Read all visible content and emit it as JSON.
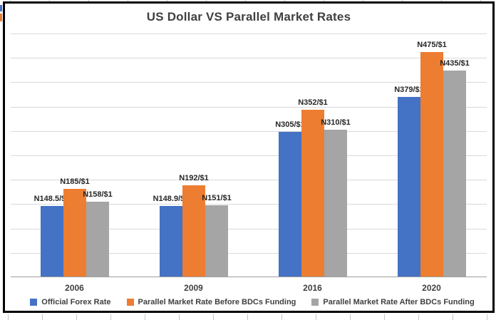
{
  "chart": {
    "title": "US Dollar VS Parallel Market Rates",
    "title_color": "#404040",
    "border_color": "#000000",
    "background": "#ffffff",
    "gridline_color": "#d9d9d9",
    "axis_line_color": "#9e9e9e",
    "data_label_color": "#262626",
    "category_label_color": "#404040"
  },
  "chart_data": {
    "type": "bar",
    "title": "US Dollar VS Parallel Market Rates",
    "categories": [
      "2006",
      "2009",
      "2016",
      "2020"
    ],
    "series": [
      {
        "name": "Official Forex Rate",
        "color": "#4472C4",
        "values": [
          148.5,
          148.9,
          305,
          379
        ],
        "data_labels": [
          "N148.5/$1",
          "N148.9/$1",
          "N305/$1",
          "N379/$1"
        ]
      },
      {
        "name": "Parallel Market Rate Before BDCs Funding",
        "color": "#ED7D31",
        "values": [
          185,
          192,
          352,
          475
        ],
        "data_labels": [
          "N185/$1",
          "N192/$1",
          "N352/$1",
          "N475/$1"
        ]
      },
      {
        "name": "Parallel Market Rate After BDCs Funding",
        "color": "#A5A5A5",
        "values": [
          158,
          151,
          310,
          435
        ],
        "data_labels": [
          "N158/$1",
          "N151/$1",
          "N310/$1",
          "N435/$1"
        ]
      }
    ],
    "xlabel": "",
    "ylabel": "",
    "ylim": [
      0,
      515
    ],
    "gridline_count": 10,
    "y_axis_labels_visible": false,
    "legend_position": "bottom",
    "grid": true
  }
}
